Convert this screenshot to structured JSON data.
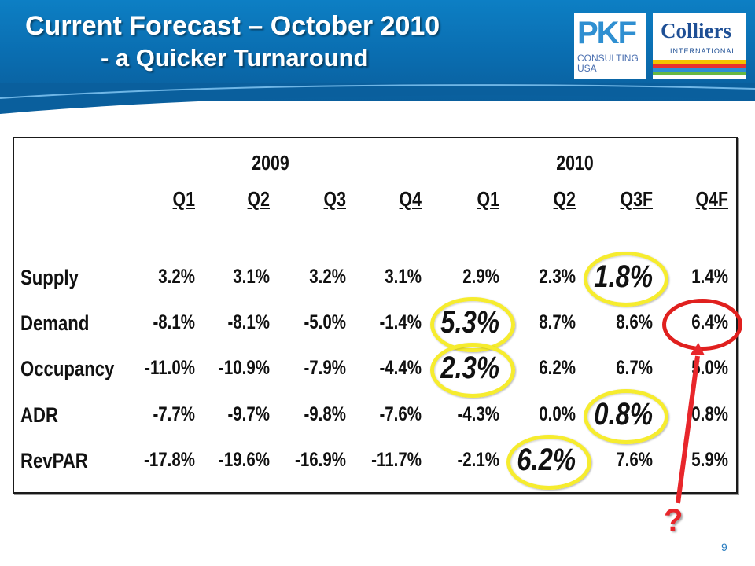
{
  "slide": {
    "title_line1": "Current Forecast – October 2010",
    "title_line2": "- a Quicker Turnaround",
    "page_number": "9",
    "question_mark": "?"
  },
  "logos": {
    "pkf": {
      "mark": "PKF",
      "line1": "CONSULTING",
      "line2": "USA"
    },
    "colliers": {
      "name": "Colliers",
      "sub": "INTERNATIONAL"
    }
  },
  "colors": {
    "header_blue": "#0a6db0",
    "highlight_yellow": "#f6ec2e",
    "highlight_red": "#e0201e"
  },
  "table": {
    "years": [
      "2009",
      "2010"
    ],
    "quarters": [
      "Q1",
      "Q2",
      "Q3",
      "Q4",
      "Q1",
      "Q2",
      "Q3F",
      "Q4F"
    ],
    "rows": [
      {
        "label": "Supply",
        "values": [
          "3.2%",
          "3.1%",
          "3.2%",
          "3.1%",
          "2.9%",
          "2.3%",
          "1.8%",
          "1.4%"
        ]
      },
      {
        "label": "Demand",
        "values": [
          "-8.1%",
          "-8.1%",
          "-5.0%",
          "-1.4%",
          "5.3%",
          "8.7%",
          "8.6%",
          "6.4%"
        ]
      },
      {
        "label": "Occupancy",
        "values": [
          "-11.0%",
          "-10.9%",
          "-7.9%",
          "-4.4%",
          "2.3%",
          "6.2%",
          "6.7%",
          "5.0%"
        ]
      },
      {
        "label": "ADR",
        "values": [
          "-7.7%",
          "-9.7%",
          "-9.8%",
          "-7.6%",
          "-4.3%",
          "0.0%",
          "0.8%",
          "0.8%"
        ]
      },
      {
        "label": "RevPAR",
        "values": [
          "-17.8%",
          "-19.6%",
          "-16.9%",
          "-11.7%",
          "-2.1%",
          "6.2%",
          "7.6%",
          "5.9%"
        ]
      }
    ],
    "highlighted_yellow": [
      {
        "row": 0,
        "col": 6
      },
      {
        "row": 1,
        "col": 4
      },
      {
        "row": 2,
        "col": 4
      },
      {
        "row": 3,
        "col": 6
      },
      {
        "row": 4,
        "col": 5
      }
    ],
    "highlighted_red": [
      {
        "row": 1,
        "col": 7
      }
    ]
  }
}
